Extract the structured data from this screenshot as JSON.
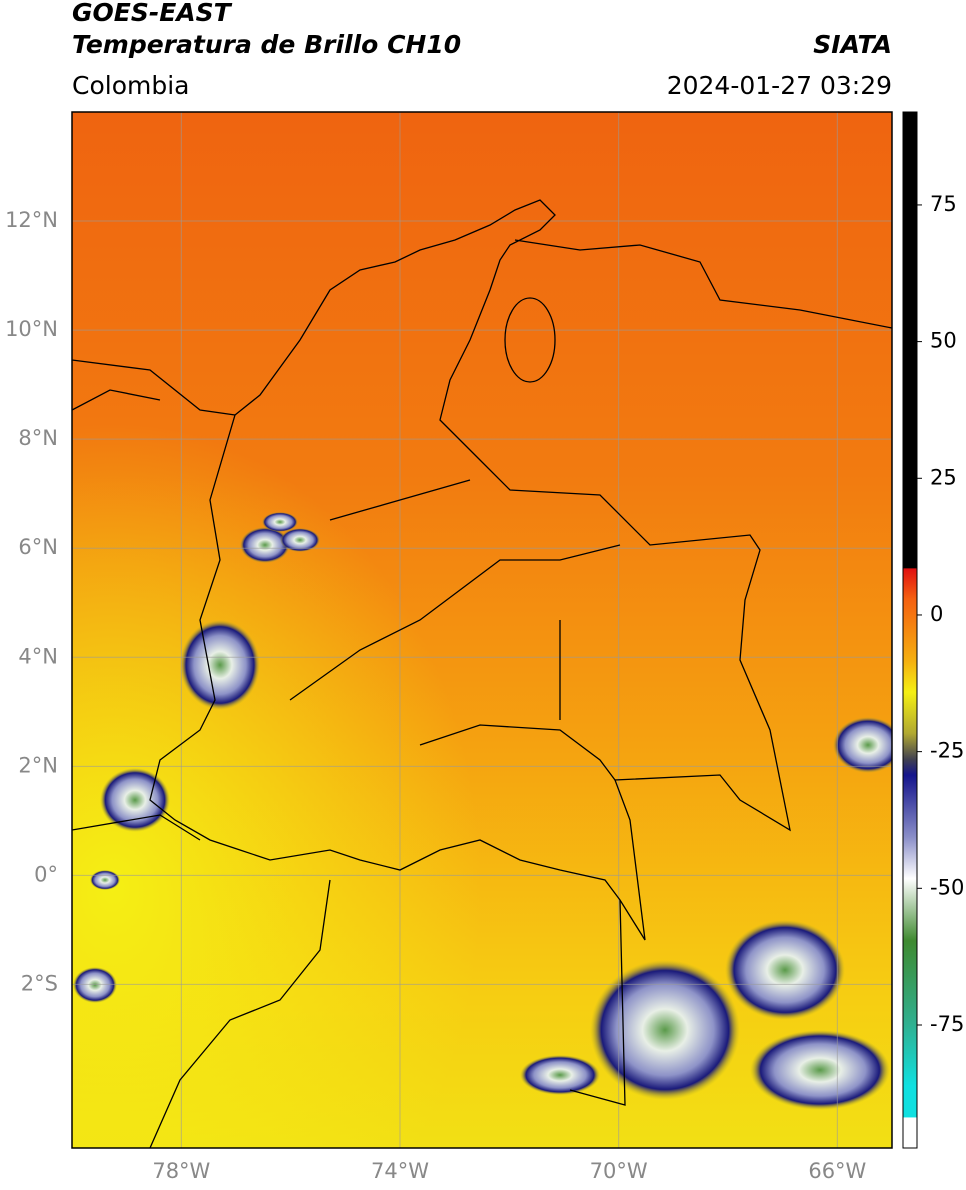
{
  "header": {
    "satellite": "GOES-EAST",
    "product": "Temperatura de Brillo CH10",
    "source": "SIATA",
    "region": "Colombia",
    "datetime": "2024-01-27 03:29"
  },
  "map": {
    "lon_lim": [
      -80,
      -65
    ],
    "lat_lim": [
      -5,
      14
    ],
    "lat_ticks": [
      {
        "value": 12,
        "label": "12°N"
      },
      {
        "value": 10,
        "label": "10°N"
      },
      {
        "value": 8,
        "label": "8°N"
      },
      {
        "value": 6,
        "label": "6°N"
      },
      {
        "value": 4,
        "label": "4°N"
      },
      {
        "value": 2,
        "label": "2°N"
      },
      {
        "value": 0,
        "label": "0°"
      },
      {
        "value": -2,
        "label": "2°S"
      }
    ],
    "lon_ticks": [
      {
        "value": -78,
        "label": "78°W"
      },
      {
        "value": -74,
        "label": "74°W"
      },
      {
        "value": -70,
        "label": "70°W"
      },
      {
        "value": -66,
        "label": "66°W"
      }
    ]
  },
  "colorbar": {
    "lim": [
      -97.5,
      92
    ],
    "ticks": [
      75,
      50,
      25,
      0,
      -25,
      -50,
      -75
    ]
  }
}
